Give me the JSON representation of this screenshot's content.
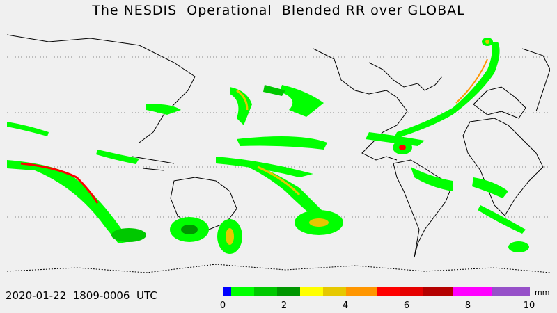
{
  "title": "The NESDIS  Operational  Blended RR over GLOBAL",
  "timestamp": "2020-01-22  1809-0006  UTC",
  "legend": {
    "unit": "mm",
    "ticks": [
      "0",
      "2",
      "4",
      "6",
      "8",
      "10"
    ],
    "tick_values": [
      0,
      2,
      4,
      6,
      8,
      10
    ],
    "range": [
      0,
      10
    ],
    "colors": [
      "#0000ff",
      "#00ff00",
      "#00c800",
      "#009600",
      "#ffff00",
      "#e6c800",
      "#ff9600",
      "#ff0000",
      "#e60000",
      "#b40000",
      "#ff00ff",
      "#9650c8"
    ],
    "color_bounds": [
      0,
      0.25,
      1.0,
      1.75,
      2.5,
      3.25,
      4.0,
      5.0,
      5.75,
      6.5,
      7.5,
      8.75,
      10
    ]
  },
  "map": {
    "projection": "equirectangular",
    "lon_range": [
      -180,
      180
    ],
    "lat_range": [
      -60,
      75
    ],
    "grid": "dotted",
    "rain_fields": [
      {
        "name": "south-pacific-convergence",
        "color": "#00ff00",
        "peak": "#ff0000"
      },
      {
        "name": "southern-indian-ocean-cyclone",
        "color": "#00ff00",
        "peak": "#e6c800"
      },
      {
        "name": "north-atlantic-band",
        "color": "#00ff00",
        "peak": "#ff9600"
      },
      {
        "name": "north-pacific-storms",
        "color": "#00ff00",
        "peak": "#ffff00"
      }
    ]
  }
}
